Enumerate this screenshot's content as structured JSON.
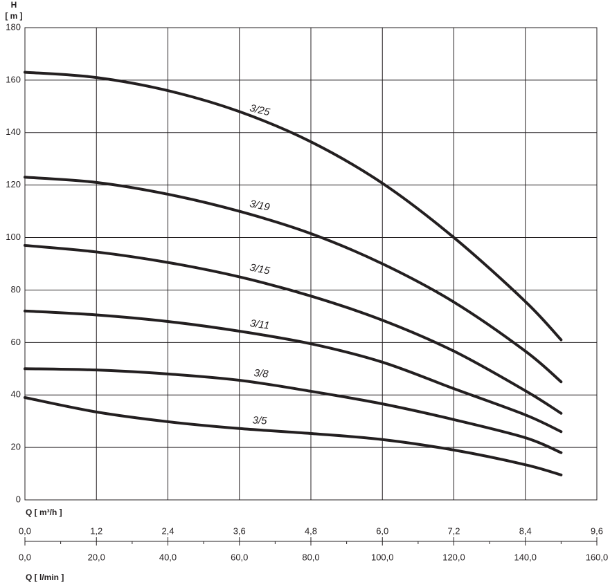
{
  "chart_data": {
    "type": "line",
    "y_axis_label": "H",
    "y_axis_unit": "[ m ]",
    "x_axis_label": "Q [ m³/h ]",
    "x2_axis_label": "Q [ l/min ]",
    "x": [
      0,
      1.2,
      2.4,
      3.6,
      4.8,
      6.0,
      7.2,
      8.4,
      9.0
    ],
    "series": [
      {
        "name": "3/25",
        "color": "#231f20",
        "values": [
          163,
          161,
          156,
          148,
          136.5,
          120.7,
          100,
          75.6,
          61
        ]
      },
      {
        "name": "3/19",
        "color": "#231f20",
        "values": [
          123,
          121,
          116.5,
          110,
          101.5,
          90,
          75.4,
          56.7,
          45
        ]
      },
      {
        "name": "3/15",
        "color": "#231f20",
        "values": [
          97,
          94.5,
          90.5,
          85,
          77.7,
          68.5,
          56.7,
          41.6,
          33
        ]
      },
      {
        "name": "3/11",
        "color": "#231f20",
        "values": [
          72,
          70.5,
          68,
          64.3,
          59.5,
          52.5,
          42.4,
          32.4,
          26
        ]
      },
      {
        "name": "3/8",
        "color": "#231f20",
        "values": [
          50,
          49.5,
          48,
          45.6,
          41.4,
          36.6,
          30.6,
          23.7,
          18
        ]
      },
      {
        "name": "3/5",
        "color": "#231f20",
        "values": [
          39,
          33.5,
          29.8,
          27.2,
          25.3,
          23,
          19,
          13.4,
          9.5
        ]
      }
    ],
    "xlim": [
      0,
      9.6
    ],
    "xticks": [
      {
        "value": 0,
        "label": "0,0"
      },
      {
        "value": 1.2,
        "label": "1,2"
      },
      {
        "value": 2.4,
        "label": "2,4"
      },
      {
        "value": 3.6,
        "label": "3,6"
      },
      {
        "value": 4.8,
        "label": "4,8"
      },
      {
        "value": 6.0,
        "label": "6,0"
      },
      {
        "value": 7.2,
        "label": "7,2"
      },
      {
        "value": 8.4,
        "label": "8,4"
      },
      {
        "value": 9.6,
        "label": "9,6"
      }
    ],
    "x2lim": [
      0,
      160
    ],
    "x2ticks": [
      {
        "value": 0,
        "label": "0,0"
      },
      {
        "value": 20,
        "label": "20,0"
      },
      {
        "value": 40,
        "label": "40,0"
      },
      {
        "value": 60,
        "label": "60,0"
      },
      {
        "value": 80,
        "label": "80,0"
      },
      {
        "value": 100,
        "label": "100,0"
      },
      {
        "value": 120,
        "label": "120,0"
      },
      {
        "value": 140,
        "label": "140,0"
      },
      {
        "value": 160,
        "label": "160,0"
      }
    ],
    "x2minor_ticks": [
      10,
      30,
      50,
      70,
      90,
      110,
      130,
      150
    ],
    "ylim": [
      0,
      180
    ],
    "yticks": [
      0,
      20,
      40,
      60,
      80,
      100,
      120,
      140,
      160,
      180
    ],
    "grid": true
  }
}
